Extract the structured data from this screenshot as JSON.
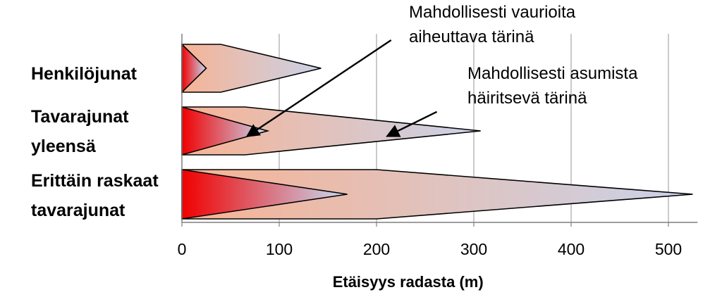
{
  "chart_data": {
    "type": "area",
    "title": "",
    "xlabel": "Etäisyys radasta (m)",
    "ylabel": "",
    "xlim": [
      0,
      530
    ],
    "x_ticks": [
      "0",
      "100",
      "200",
      "300",
      "400",
      "500"
    ],
    "x_tick_values": [
      0,
      100,
      200,
      300,
      400,
      500
    ],
    "grid": true,
    "categories": [
      {
        "label_lines": [
          "Henkilöjunat"
        ],
        "outer_reach": 143,
        "outer_plateau": 40,
        "inner_reach": 25
      },
      {
        "label_lines": [
          "Tavarajunat",
          "yleensä"
        ],
        "outer_reach": 307,
        "outer_plateau": 65,
        "inner_reach": 88
      },
      {
        "label_lines": [
          "Erittäin raskaat",
          "tavarajunat"
        ],
        "outer_reach": 525,
        "outer_plateau": 200,
        "inner_reach": 170
      }
    ],
    "series": [
      {
        "name": "Mahdollisesti vaurioita aiheuttava tärinä",
        "field": "inner_reach"
      },
      {
        "name": "Mahdollisesti asumista häiritsevä tärinä",
        "field": "outer_reach"
      }
    ],
    "annotations": [
      {
        "lines": [
          "Mahdollisesti vaurioita",
          "aiheuttava tärinä"
        ],
        "from": [
          215,
          4.3
        ],
        "to": [
          68,
          1.6
        ]
      },
      {
        "lines": [
          "Mahdollisesti asumista",
          "häiritsevä tärinä"
        ],
        "from": [
          262,
          1.1
        ],
        "to": [
          212,
          1.6
        ]
      }
    ]
  },
  "colors": {
    "damage_start": "#f00000",
    "damage_end": "#c6dcf5",
    "disturb_start": "#f7b394",
    "disturb_end": "#c9d2e8",
    "grid": "#a6a6a6",
    "axis": "#7f7f7f",
    "outline": "#000000"
  }
}
